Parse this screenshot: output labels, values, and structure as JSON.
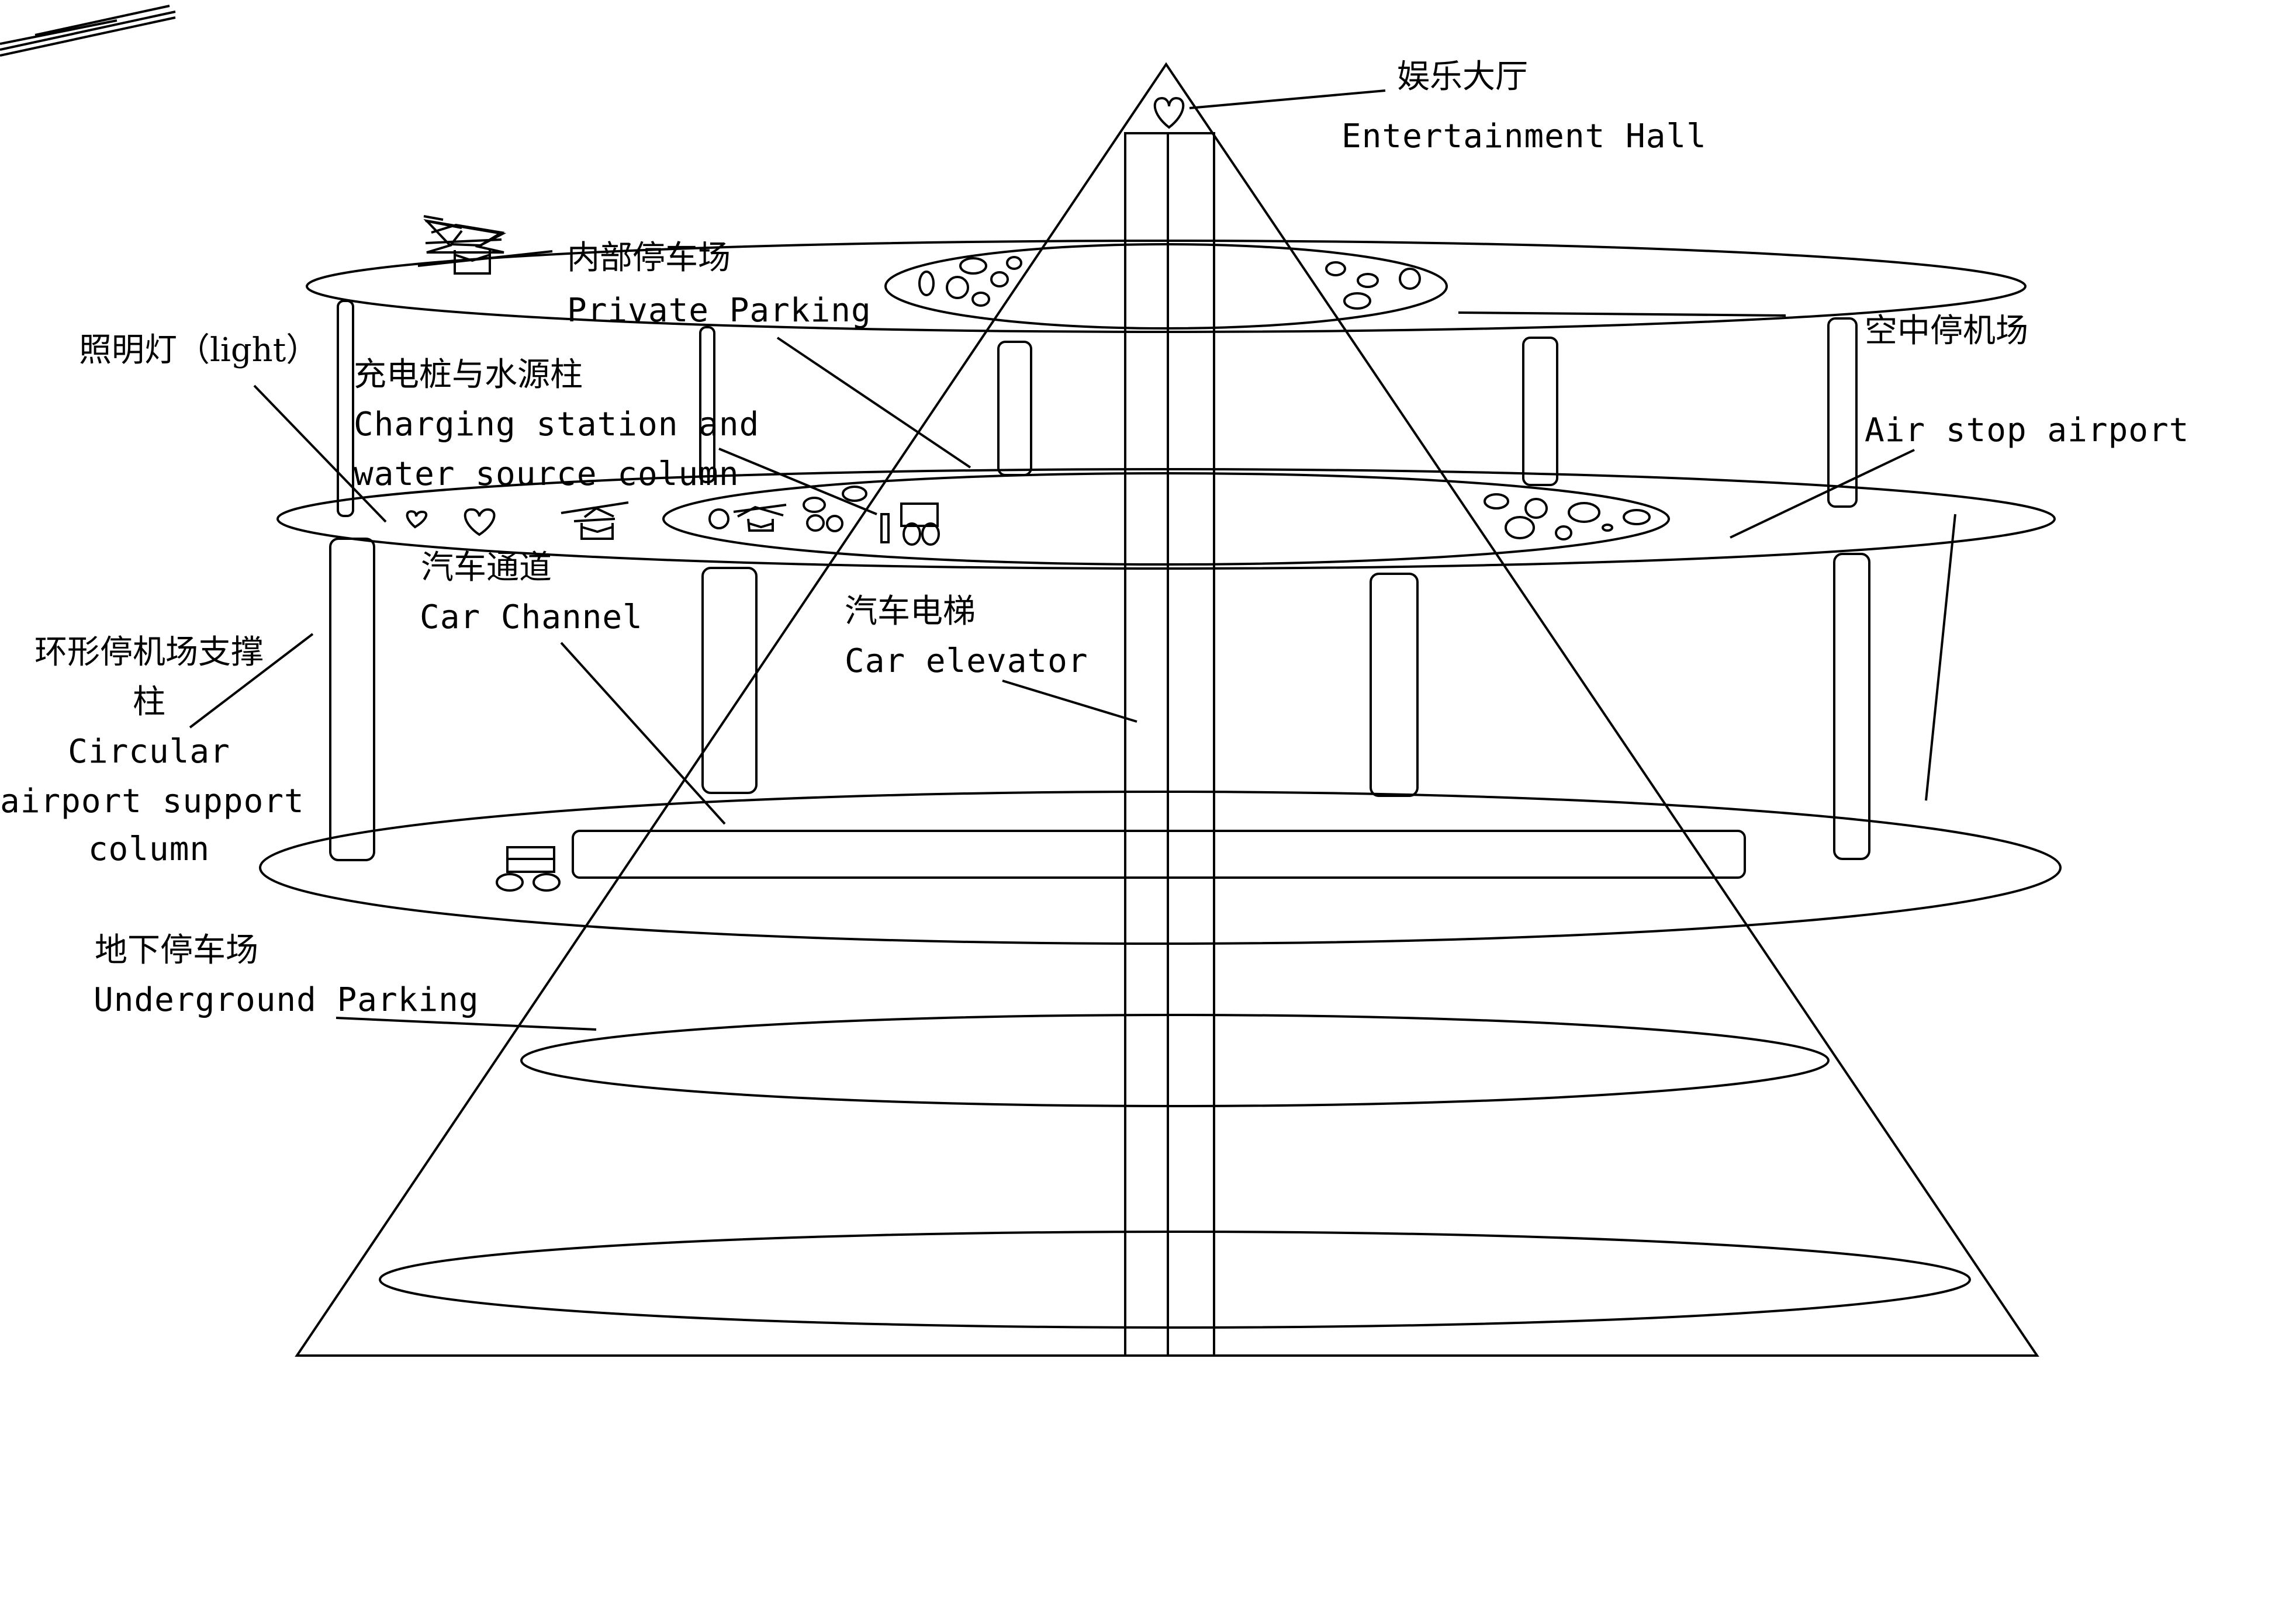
{
  "labels": {
    "entertainment_hall": {
      "zh": "娱乐大厅",
      "en": "Entertainment Hall"
    },
    "private_parking": {
      "zh": "内部停车场",
      "en": "Private Parking"
    },
    "air_stop_airport": {
      "zh": "空中停机场",
      "en": "Air stop airport"
    },
    "light": {
      "zh": "照明灯（light）"
    },
    "charging_station": {
      "zh": "充电桩与水源柱",
      "en_line1": "Charging station and",
      "en_line2": "water source column"
    },
    "car_channel": {
      "zh": "汽车通道",
      "en": "Car Channel"
    },
    "car_elevator": {
      "zh": "汽车电梯",
      "en": "Car elevator"
    },
    "support_column": {
      "zh_line1": "环形停机场支撑",
      "zh_line2": "柱",
      "en_line1": "Circular",
      "en_line2": "airport support",
      "en_line3": "column"
    },
    "underground_parking": {
      "zh": "地下停车场",
      "en": "Underground Parking"
    }
  }
}
